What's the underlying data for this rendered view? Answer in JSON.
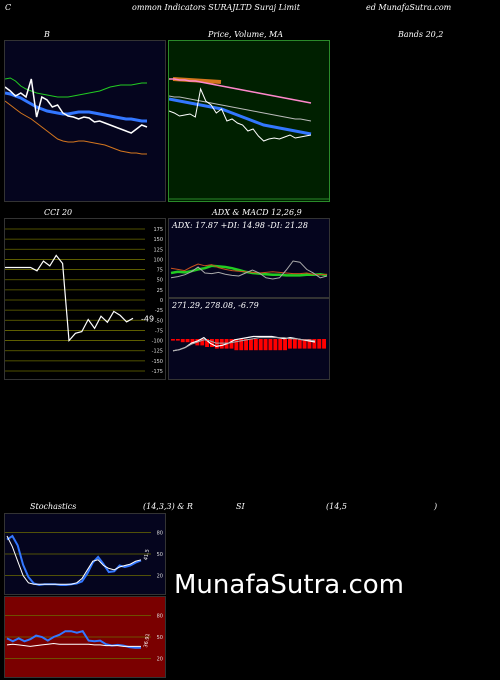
{
  "header": {
    "c": "C",
    "middle": "ommon  Indicators SURAJLTD Suraj Limit",
    "right": "ed MunafaSutra.com"
  },
  "labels": {
    "b": "B",
    "price_a": "Price,  Volume,  MA",
    "price_b": "Bands 20,2",
    "cci": "CCI 20",
    "adx_macd": "ADX  & MACD 12,26,9",
    "adx_values": "ADX: 17.87  +DI: 14.98  -DI: 21.28",
    "macd_values": "271.29,  278.08,  -6.79",
    "stoch": "Stochastics",
    "stoch_params": "(14,3,3) & R",
    "si": "SI",
    "rsi_params": "(14,5",
    "close_paren": ")"
  },
  "watermark": "MunafaSutra.com",
  "colors": {
    "dark_navy": "#05051e",
    "green_bg": "#002000",
    "cci_bg": "#000000",
    "rsi_bg": "#7a0000",
    "grid_olive": "#6b6b00",
    "blue": "#3377ff",
    "orange": "#d4761e",
    "green": "#22cc22",
    "red": "#ff0000"
  },
  "chart_data": [
    {
      "name": "bollinger",
      "type": "line",
      "series": [
        {
          "values": [
            78,
            77,
            80,
            85,
            88,
            90,
            92,
            93,
            94,
            95,
            96,
            96,
            96,
            95,
            94,
            93,
            92,
            91,
            90,
            88,
            86,
            85,
            84,
            84,
            84,
            83,
            82,
            82
          ]
        },
        {
          "values": [
            92,
            93,
            95,
            97,
            100,
            103,
            106,
            108,
            110,
            111,
            112,
            113,
            113,
            112,
            111,
            111,
            111,
            112,
            113,
            114,
            115,
            116,
            117,
            118,
            118,
            119,
            120,
            120
          ]
        },
        {
          "values": [
            100,
            104,
            108,
            112,
            115,
            118,
            122,
            126,
            130,
            134,
            138,
            140,
            141,
            141,
            140,
            140,
            141,
            142,
            143,
            144,
            146,
            148,
            150,
            151,
            152,
            152,
            153,
            153
          ]
        },
        {
          "values": [
            86,
            90,
            95,
            92,
            96,
            78,
            116,
            96,
            99,
            106,
            104,
            112,
            115,
            116,
            118,
            116,
            117,
            121,
            120,
            122,
            124,
            126,
            128,
            130,
            132,
            128,
            124,
            126
          ]
        }
      ]
    },
    {
      "name": "price_ma",
      "type": "line",
      "series": [
        {
          "values": [
            78,
            78,
            79,
            79,
            80,
            80,
            81,
            82,
            83,
            84,
            85,
            86,
            87,
            88,
            89,
            90,
            91,
            92,
            93,
            94,
            95,
            96,
            97,
            98,
            99,
            100,
            101,
            102
          ]
        },
        {
          "values": [
            95,
            96,
            96,
            97,
            98,
            99,
            100,
            101,
            102,
            103,
            104,
            105,
            106,
            107,
            108,
            109,
            110,
            111,
            112,
            113,
            114,
            115,
            116,
            117,
            118,
            118,
            119,
            120
          ]
        },
        {
          "values": [
            98,
            99,
            100,
            101,
            102,
            103,
            104,
            105,
            106,
            107,
            108,
            110,
            112,
            114,
            116,
            118,
            120,
            122,
            124,
            125,
            126,
            127,
            128,
            129,
            130,
            131,
            132,
            133
          ]
        },
        {
          "values": [
            110,
            112,
            115,
            114,
            113,
            116,
            88,
            100,
            104,
            112,
            108,
            120,
            118,
            122,
            124,
            130,
            128,
            135,
            140,
            138,
            137,
            138,
            136,
            134,
            137,
            136,
            135,
            134
          ]
        }
      ]
    },
    {
      "name": "cci",
      "type": "line",
      "ylim": [
        -175,
        175
      ],
      "ticks": [
        175,
        150,
        125,
        100,
        75,
        50,
        25,
        0,
        -25,
        -50,
        -75,
        -100,
        -125,
        -150,
        -175
      ],
      "tick_labels": [
        "175",
        "150",
        "125",
        "100",
        "75",
        "50",
        "25",
        "0",
        "-25",
        "-50",
        "-75",
        "-100",
        "-125",
        "-150",
        "-175"
      ],
      "last_label": "-49",
      "values": [
        80,
        80,
        80,
        80,
        80,
        72,
        96,
        84,
        110,
        90,
        -100,
        -82,
        -78,
        -48,
        -70,
        -40,
        -55,
        -28,
        -38,
        -54,
        -45
      ]
    },
    {
      "name": "adx",
      "type": "line",
      "ylim": [
        0,
        100
      ],
      "series": [
        {
          "color": "#22cc22",
          "values": [
            30,
            32,
            31,
            33,
            36,
            38,
            42,
            41,
            40,
            38,
            35,
            32,
            30,
            29,
            28,
            27,
            27,
            26,
            26,
            26,
            27,
            27,
            28,
            26
          ]
        },
        {
          "color": "#c8501e",
          "values": [
            38,
            36,
            34,
            40,
            45,
            42,
            44,
            39,
            36,
            34,
            33,
            32,
            31,
            30,
            31,
            32,
            31,
            30,
            29,
            29,
            30,
            28,
            27,
            28
          ]
        },
        {
          "color": "#aaaaaa",
          "values": [
            22,
            24,
            27,
            32,
            40,
            30,
            29,
            31,
            28,
            26,
            25,
            30,
            35,
            30,
            22,
            20,
            22,
            35,
            50,
            48,
            36,
            30,
            22,
            25
          ]
        }
      ]
    },
    {
      "name": "macd",
      "type": "bar",
      "bars": [
        -1,
        -1,
        -2,
        -2,
        -3,
        -4,
        -4,
        -5,
        -5,
        -6,
        -6,
        -6,
        -6,
        -7,
        -7,
        -7,
        -7,
        -7,
        -7,
        -7,
        -7,
        -7,
        -7,
        -7,
        -6,
        -6,
        -6,
        -6,
        -6,
        -6,
        -6,
        -6
      ],
      "macd": [
        272,
        273,
        275,
        279,
        281,
        284,
        279,
        276,
        277,
        279,
        282,
        283,
        284,
        285,
        285,
        285,
        285,
        284,
        283,
        284,
        283,
        282,
        281,
        280
      ],
      "signal": [
        272,
        273,
        275,
        278,
        280,
        282,
        281,
        279,
        279,
        279,
        280,
        281,
        282,
        283,
        284,
        284,
        284,
        284,
        284,
        283,
        283,
        282,
        282,
        281
      ]
    },
    {
      "name": "stochastics",
      "type": "line",
      "ylim": [
        0,
        100
      ],
      "ticks": [
        80,
        50,
        20
      ],
      "tick_labels": [
        "80",
        "50",
        "20"
      ],
      "last_label": "41.5",
      "series": [
        {
          "color": "#3377ff",
          "values": [
            70,
            75,
            62,
            35,
            18,
            9,
            7,
            8,
            8,
            8,
            7,
            7,
            8,
            9,
            12,
            23,
            38,
            46,
            36,
            25,
            26,
            34,
            32,
            34,
            38,
            41
          ]
        },
        {
          "color": "#ffffff",
          "values": [
            75,
            60,
            40,
            20,
            10,
            8,
            8,
            8,
            8,
            8,
            8,
            8,
            8,
            10,
            16,
            28,
            40,
            42,
            34,
            30,
            28,
            32,
            34,
            36,
            40,
            42
          ]
        }
      ]
    },
    {
      "name": "rsi",
      "type": "line",
      "ylim": [
        0,
        100
      ],
      "ticks": [
        80,
        50,
        20
      ],
      "tick_labels": [
        "80",
        "50",
        "20"
      ],
      "last_label": "36.91",
      "series": [
        {
          "color": "#3377ff",
          "values": [
            48,
            44,
            48,
            44,
            47,
            52,
            50,
            45,
            50,
            53,
            58,
            58,
            56,
            58,
            45,
            44,
            45,
            40,
            38,
            39,
            38,
            36,
            35,
            35
          ]
        },
        {
          "color": "#ffffff",
          "values": [
            39,
            40,
            39,
            38,
            37,
            38,
            39,
            40,
            41,
            40,
            40,
            40,
            40,
            40,
            40,
            39,
            39,
            38,
            38,
            38,
            37,
            37,
            37,
            37
          ]
        }
      ]
    }
  ]
}
